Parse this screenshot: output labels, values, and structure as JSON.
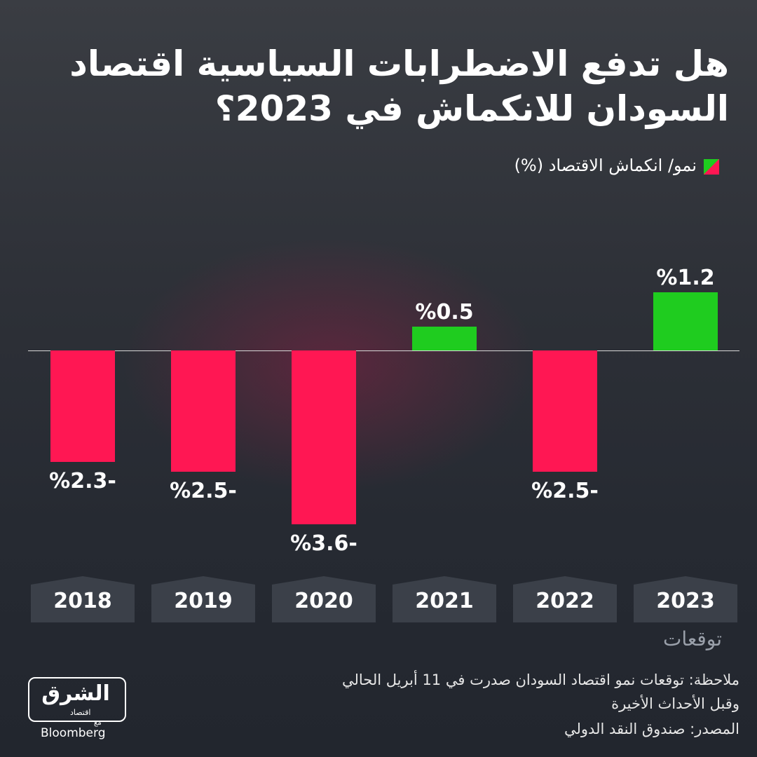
{
  "chart_data": {
    "type": "bar",
    "title_lines": [
      "هل تدفع الاضطرابات السياسية اقتصاد",
      "السودان للانكماش في 2023؟"
    ],
    "series": [
      {
        "name": "نمو/ انكماش الاقتصاد (%)",
        "color_positive": "#1fcc1f",
        "color_negative": "#ff1753",
        "values": [
          -2.3,
          -2.5,
          -3.6,
          0.5,
          -2.5,
          1.2
        ],
        "value_labels": [
          "%2.3-",
          "%2.5-",
          "%3.6-",
          "%0.5",
          "%2.5-",
          "%1.2"
        ]
      }
    ],
    "categories": [
      "2018",
      "2019",
      "2020",
      "2021",
      "2022",
      "2023"
    ],
    "annotation": "توقعات",
    "note_lines": [
      "ملاحظة: توقعات نمو اقتصاد السودان صدرت في 11 أبريل الحالي",
      "وقبل الأحداث الأخيرة"
    ],
    "source": "المصدر: صندوق النقد الدولي",
    "logo": {
      "name": "الشرق",
      "sub": "اقتصاد",
      "with": "مع",
      "partner": "Bloomberg"
    }
  }
}
